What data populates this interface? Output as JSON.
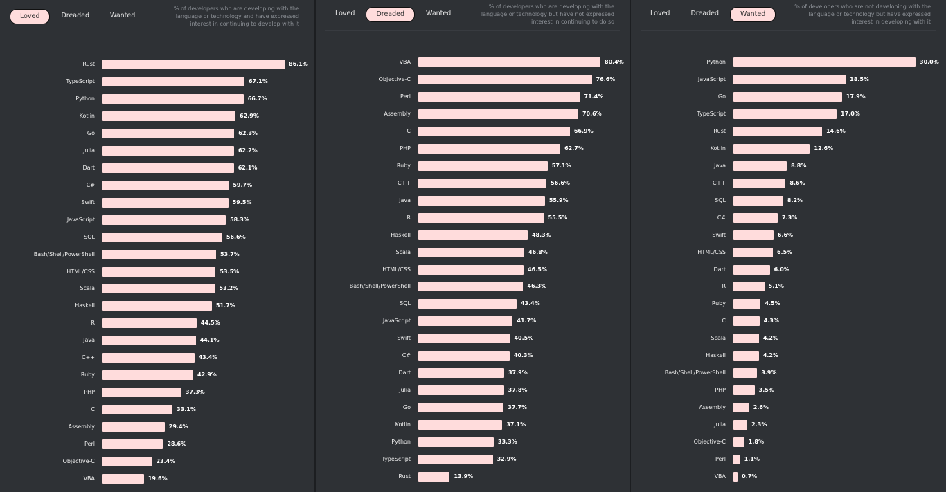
{
  "tabs": [
    "Loved",
    "Dreaded",
    "Wanted"
  ],
  "colors": {
    "bar": "#ffdcdc",
    "background": "#2e3135",
    "active_tab": "#ffdcdc"
  },
  "chart_data": [
    {
      "type": "bar",
      "orientation": "horizontal",
      "active_tab": "Loved",
      "unit": "%",
      "description": "% of developers who are developing with the language or technology and have expressed interest in continuing to develop with it",
      "categories": [
        "Rust",
        "TypeScript",
        "Python",
        "Kotlin",
        "Go",
        "Julia",
        "Dart",
        "C#",
        "Swift",
        "JavaScript",
        "SQL",
        "Bash/Shell/PowerShell",
        "HTML/CSS",
        "Scala",
        "Haskell",
        "R",
        "Java",
        "C++",
        "Ruby",
        "PHP",
        "C",
        "Assembly",
        "Perl",
        "Objective-C",
        "VBA"
      ],
      "values": [
        86.1,
        67.1,
        66.7,
        62.9,
        62.3,
        62.2,
        62.1,
        59.7,
        59.5,
        58.3,
        56.6,
        53.7,
        53.5,
        53.2,
        51.7,
        44.5,
        44.1,
        43.4,
        42.9,
        37.3,
        33.1,
        29.4,
        28.6,
        23.4,
        19.6
      ],
      "labels": [
        "86.1%",
        "67.1%",
        "66.7%",
        "62.9%",
        "62.3%",
        "62.2%",
        "62.1%",
        "59.7%",
        "59.5%",
        "58.3%",
        "56.6%",
        "53.7%",
        "53.5%",
        "53.2%",
        "51.7%",
        "44.5%",
        "44.1%",
        "43.4%",
        "42.9%",
        "37.3%",
        "33.1%",
        "29.4%",
        "28.6%",
        "23.4%",
        "19.6%"
      ]
    },
    {
      "type": "bar",
      "orientation": "horizontal",
      "active_tab": "Dreaded",
      "unit": "%",
      "description": "% of developers who are developing with the language or technology but have not expressed interest in continuing to do so",
      "categories": [
        "VBA",
        "Objective-C",
        "Perl",
        "Assembly",
        "C",
        "PHP",
        "Ruby",
        "C++",
        "Java",
        "R",
        "Haskell",
        "Scala",
        "HTML/CSS",
        "Bash/Shell/PowerShell",
        "SQL",
        "JavaScript",
        "Swift",
        "C#",
        "Dart",
        "Julia",
        "Go",
        "Kotlin",
        "Python",
        "TypeScript",
        "Rust"
      ],
      "values": [
        80.4,
        76.6,
        71.4,
        70.6,
        66.9,
        62.7,
        57.1,
        56.6,
        55.9,
        55.5,
        48.3,
        46.8,
        46.5,
        46.3,
        43.4,
        41.7,
        40.5,
        40.3,
        37.9,
        37.8,
        37.7,
        37.1,
        33.3,
        32.9,
        13.9
      ],
      "labels": [
        "80.4%",
        "76.6%",
        "71.4%",
        "70.6%",
        "66.9%",
        "62.7%",
        "57.1%",
        "56.6%",
        "55.9%",
        "55.5%",
        "48.3%",
        "46.8%",
        "46.5%",
        "46.3%",
        "43.4%",
        "41.7%",
        "40.5%",
        "40.3%",
        "37.9%",
        "37.8%",
        "37.7%",
        "37.1%",
        "33.3%",
        "32.9%",
        "13.9%"
      ]
    },
    {
      "type": "bar",
      "orientation": "horizontal",
      "active_tab": "Wanted",
      "unit": "%",
      "description": "% of developers who are not developing with the language or technology but have expressed interest in developing with it",
      "categories": [
        "Python",
        "JavaScript",
        "Go",
        "TypeScript",
        "Rust",
        "Kotlin",
        "Java",
        "C++",
        "SQL",
        "C#",
        "Swift",
        "HTML/CSS",
        "Dart",
        "R",
        "Ruby",
        "C",
        "Scala",
        "Haskell",
        "Bash/Shell/PowerShell",
        "PHP",
        "Assembly",
        "Julia",
        "Objective-C",
        "Perl",
        "VBA"
      ],
      "values": [
        30.0,
        18.5,
        17.9,
        17.0,
        14.6,
        12.6,
        8.8,
        8.6,
        8.2,
        7.3,
        6.6,
        6.5,
        6.0,
        5.1,
        4.5,
        4.3,
        4.2,
        4.2,
        3.9,
        3.5,
        2.6,
        2.3,
        1.8,
        1.1,
        0.7
      ],
      "labels": [
        "30.0%",
        "18.5%",
        "17.9%",
        "17.0%",
        "14.6%",
        "12.6%",
        "8.8%",
        "8.6%",
        "8.2%",
        "7.3%",
        "6.6%",
        "6.5%",
        "6.0%",
        "5.1%",
        "4.5%",
        "4.3%",
        "4.2%",
        "4.2%",
        "3.9%",
        "3.5%",
        "2.6%",
        "2.3%",
        "1.8%",
        "1.1%",
        "0.7%"
      ]
    }
  ]
}
